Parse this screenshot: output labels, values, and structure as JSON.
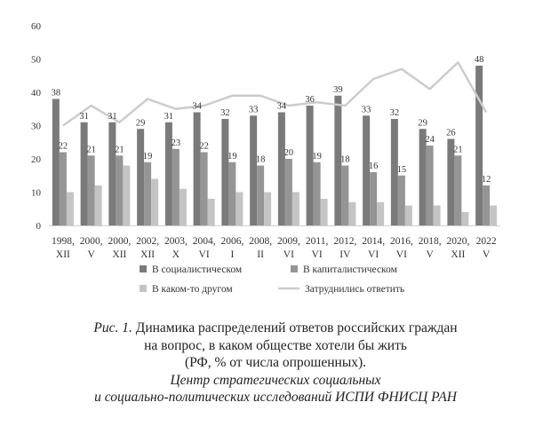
{
  "chart_data": {
    "type": "bar",
    "categories": [
      [
        "1998,",
        "XII"
      ],
      [
        "2000,",
        "V"
      ],
      [
        "2000,",
        "XII"
      ],
      [
        "2002,",
        "XII"
      ],
      [
        "2003,",
        "X"
      ],
      [
        "2004,",
        "VI"
      ],
      [
        "2006,",
        "I"
      ],
      [
        "2008,",
        "II"
      ],
      [
        "2009,",
        "VI"
      ],
      [
        "2011,",
        "VI"
      ],
      [
        "2012,",
        "IV"
      ],
      [
        "2014,",
        "VI"
      ],
      [
        "2016,",
        "VI"
      ],
      [
        "2018,",
        "V"
      ],
      [
        "2020,",
        "XII"
      ],
      [
        "2022",
        "V"
      ]
    ],
    "series": [
      {
        "name": "В социалистическом",
        "type": "bar",
        "color": "#7a7a7a",
        "values": [
          38,
          31,
          31,
          29,
          31,
          34,
          32,
          33,
          34,
          36,
          39,
          33,
          32,
          29,
          26,
          48
        ],
        "labels": true
      },
      {
        "name": "В капиталистическом",
        "type": "bar",
        "color": "#959595",
        "values": [
          22,
          21,
          21,
          19,
          23,
          22,
          19,
          18,
          20,
          19,
          18,
          16,
          15,
          24,
          21,
          12
        ],
        "labels": true
      },
      {
        "name": "В каком-то другом",
        "type": "bar",
        "color": "#c4c4c4",
        "values": [
          10,
          12,
          18,
          14,
          11,
          8,
          10,
          10,
          10,
          8,
          7,
          7,
          6,
          6,
          4,
          6
        ],
        "labels": false
      },
      {
        "name": "Затруднились ответить",
        "type": "line",
        "color": "#cccccc",
        "values": [
          30,
          36,
          31,
          38,
          35,
          36,
          39,
          39,
          36,
          37,
          36,
          44,
          47,
          41,
          49,
          34
        ],
        "labels": false
      }
    ],
    "ylim": [
      0,
      60
    ],
    "yticks": [
      0,
      10,
      20,
      30,
      40,
      50,
      60
    ],
    "grid": false,
    "legend": "bottom"
  },
  "caption": {
    "fig_label": "Рис. 1.",
    "line1_rest": " Динамика распределений ответов российских граждан",
    "line2": "на вопрос, в каком обществе хотели бы жить",
    "line3": "(РФ, % от числа опрошенных).",
    "line4": "Центр стратегических социальных",
    "line5": "и социально-политических исследований ИСПИ ФНИСЦ РАН"
  }
}
